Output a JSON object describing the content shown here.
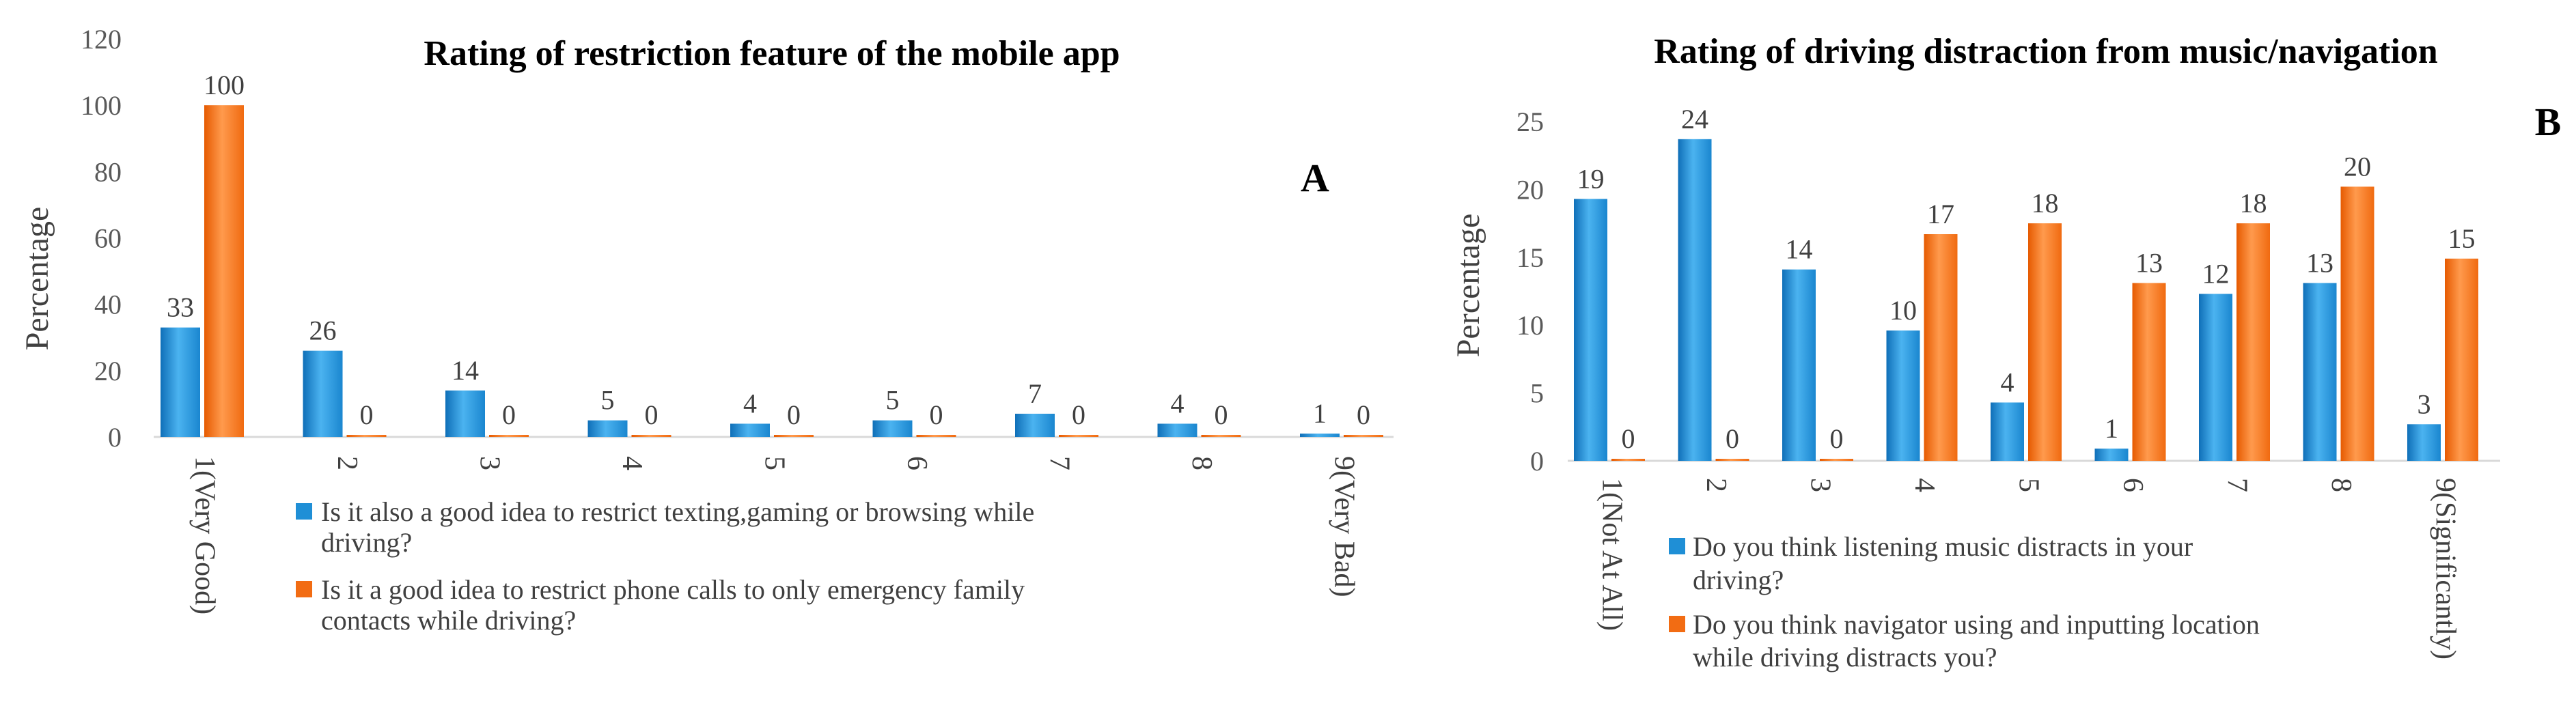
{
  "chart_data": [
    {
      "type": "bar",
      "title": "Rating of restriction  feature of the mobile app",
      "panel_label": "A",
      "ylabel": "Percentage",
      "ylim": [
        0,
        120
      ],
      "yticks": [
        0,
        20,
        40,
        60,
        80,
        100,
        120
      ],
      "categories": [
        "1(Very Good)",
        "2",
        "3",
        "4",
        "5",
        "6",
        "7",
        "8",
        "9(Very Bad)"
      ],
      "series": [
        {
          "name": "Is it also a good idea to restrict texting,gaming or browsing while driving?",
          "legend_lines": [
            "Is it also a good idea to restrict texting,gaming or browsing while",
            "driving?"
          ],
          "values": [
            33,
            26,
            14,
            5,
            4,
            5,
            7,
            4,
            1
          ],
          "color": "#1f8fd6"
        },
        {
          "name": "Is it a good idea to restrict phone calls to only emergency family contacts while driving?",
          "legend_lines": [
            "Is it a good idea to restrict phone calls to only emergency family",
            "contacts while driving?"
          ],
          "values": [
            100,
            0,
            0,
            0,
            0,
            0,
            0,
            0,
            0
          ],
          "color": "#f26c13"
        }
      ],
      "grid": false,
      "legend_position": "bottom"
    },
    {
      "type": "bar",
      "title": "Rating of driving  distraction  from music/navigation",
      "panel_label": "B",
      "ylabel": "Percentage",
      "ylim": [
        0,
        25
      ],
      "yticks": [
        0,
        5,
        10,
        15,
        20,
        25
      ],
      "categories": [
        "1(Not At All)",
        "2",
        "3",
        "4",
        "5",
        "6",
        "7",
        "8",
        "9(Significantly)"
      ],
      "series": [
        {
          "name": "Do you think listening music distracts in your driving?",
          "legend_lines": [
            "Do you think listening music distracts in your",
            "driving?"
          ],
          "values": [
            19,
            24,
            14,
            10,
            4,
            1,
            12,
            13,
            3
          ],
          "display_values": [
            19.3,
            23.7,
            14.1,
            9.6,
            4.3,
            0.9,
            12.3,
            13.1,
            2.7
          ],
          "color": "#1f8fd6"
        },
        {
          "name": "Do you think navigator using and inputting location while driving distracts you?",
          "legend_lines": [
            "Do you think navigator using and inputting location",
            "while driving distracts you?"
          ],
          "values": [
            0,
            0,
            0,
            17,
            18,
            13,
            18,
            20,
            15
          ],
          "display_values": [
            0,
            0,
            0,
            16.7,
            17.5,
            13.1,
            17.5,
            20.2,
            14.9
          ],
          "color": "#f26c13"
        }
      ],
      "grid": false,
      "legend_position": "bottom"
    }
  ]
}
